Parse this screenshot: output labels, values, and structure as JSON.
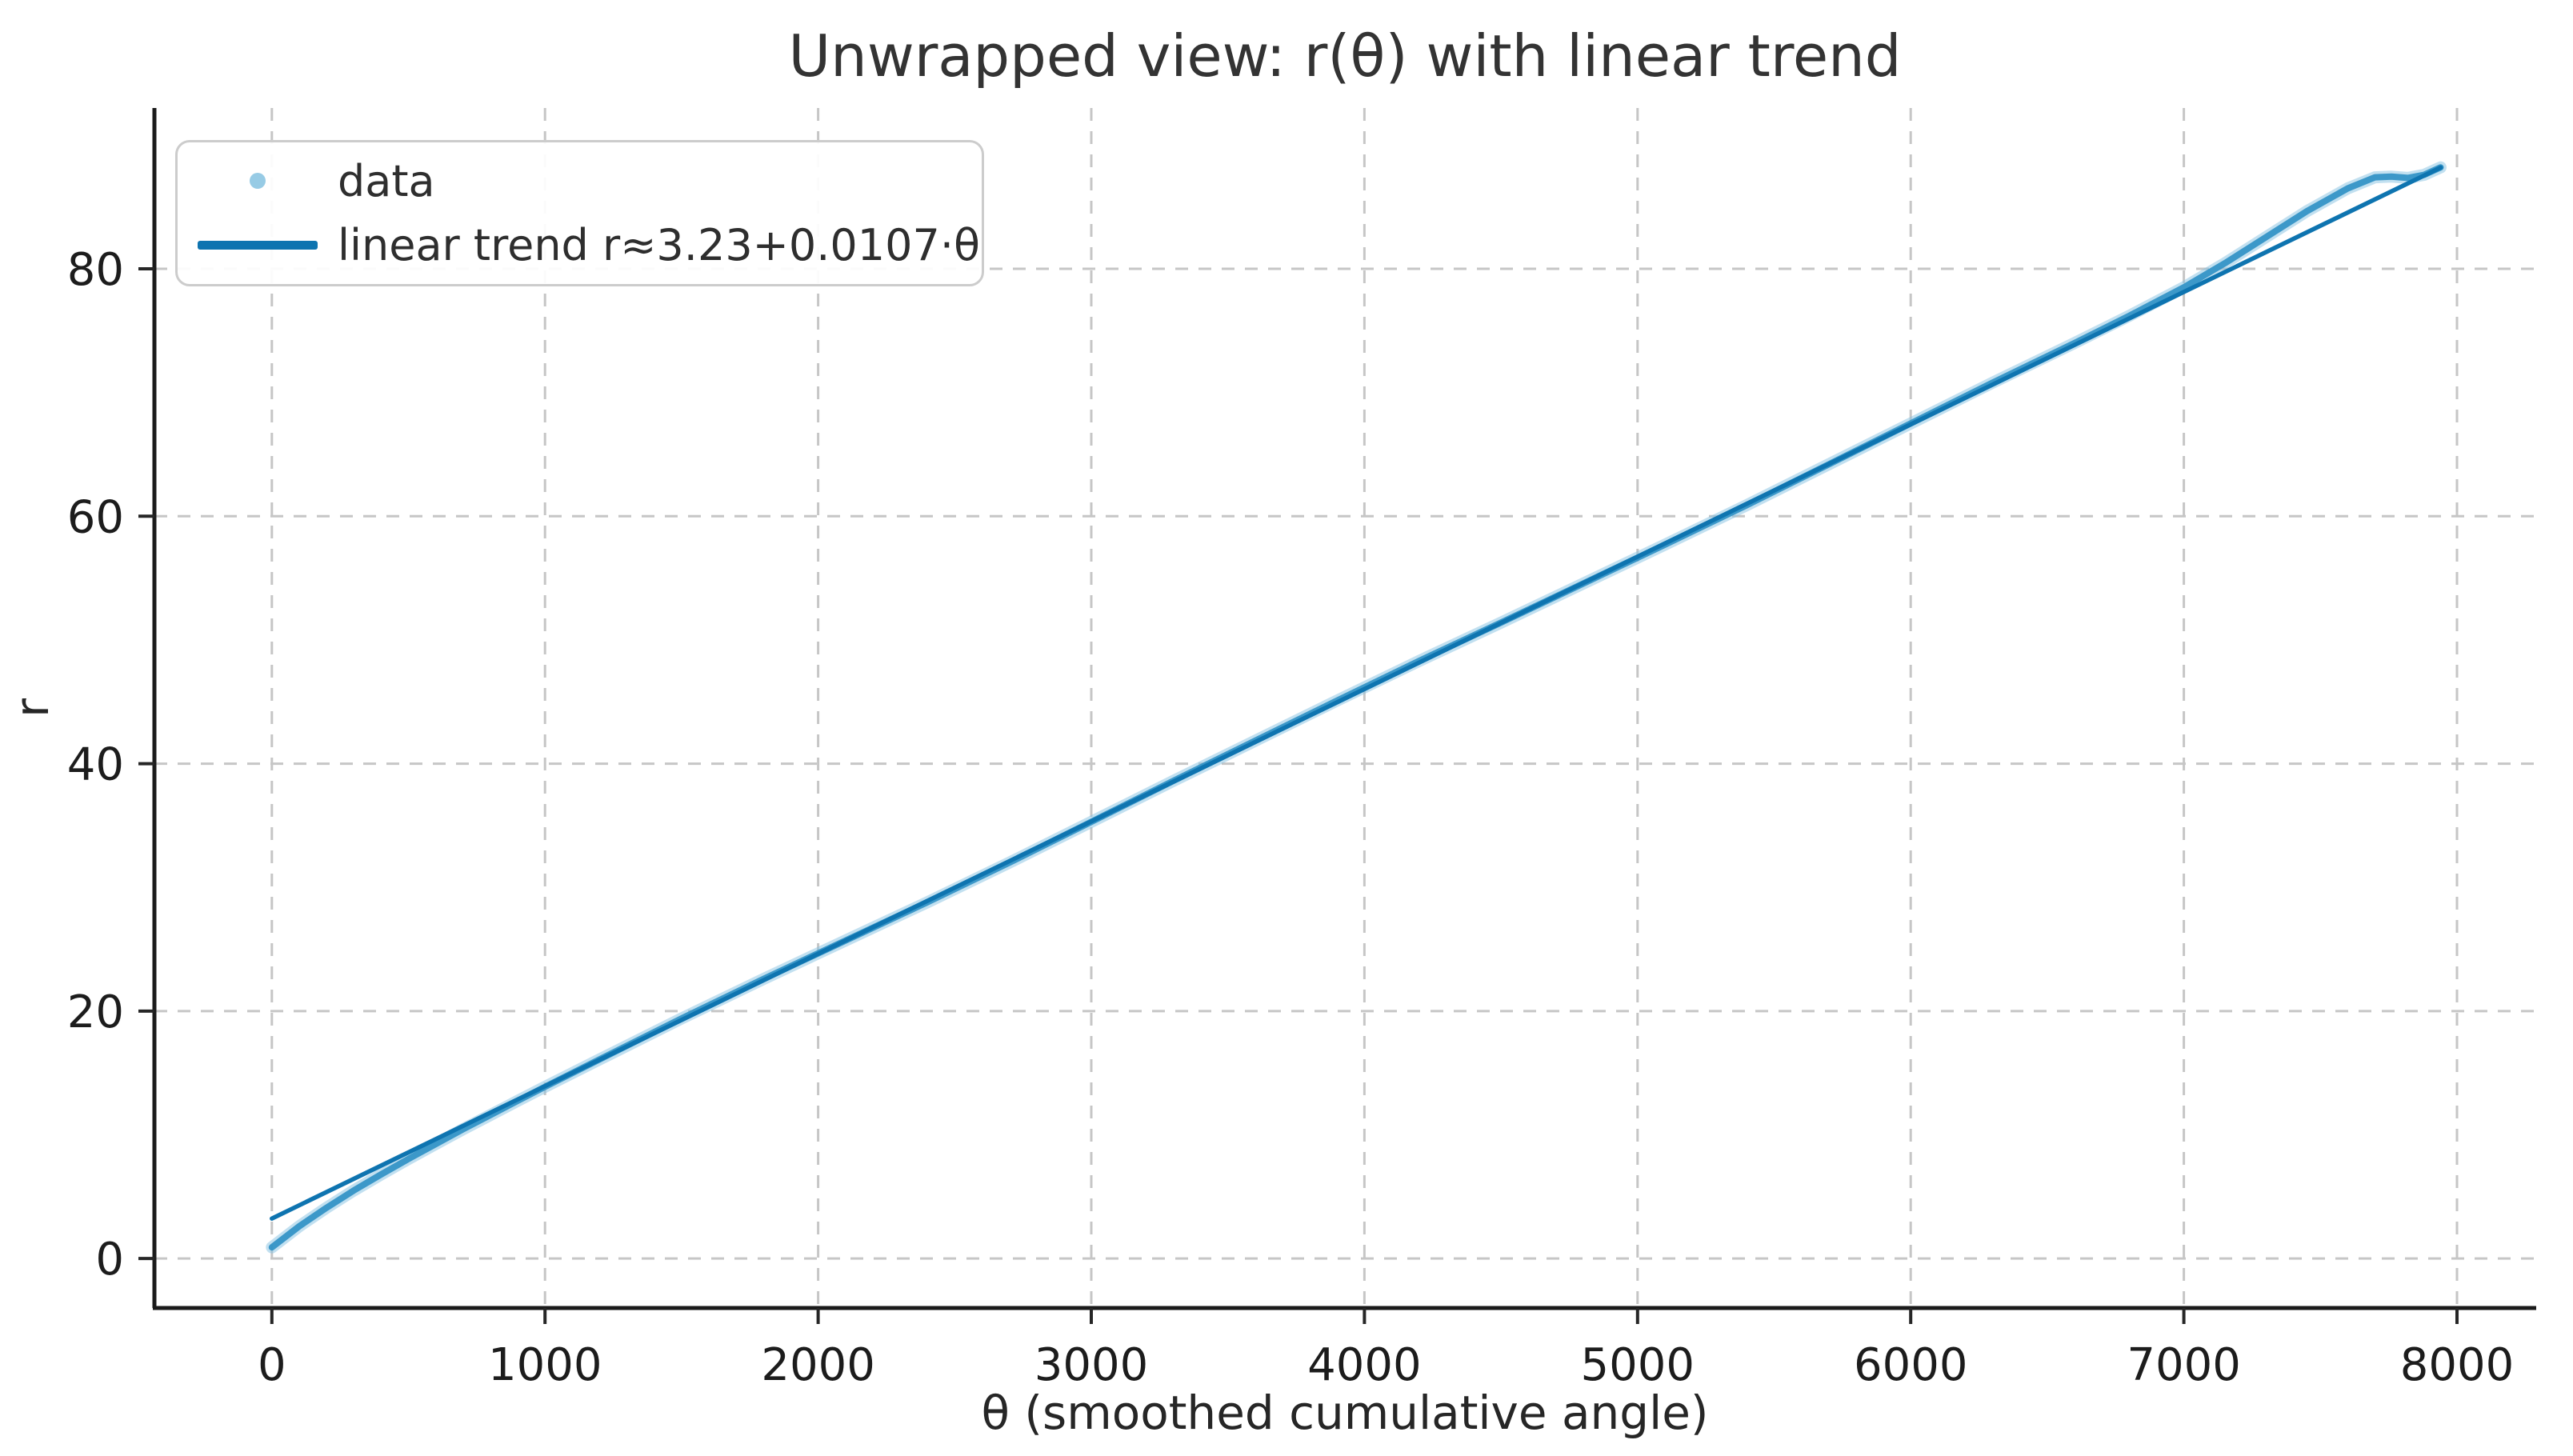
{
  "chart_data": {
    "type": "scatter",
    "title": "Unwrapped view: r(θ) with linear trend",
    "xlabel": "θ (smoothed cumulative angle)",
    "ylabel": "r",
    "xlim": [
      -430,
      8290
    ],
    "ylim": [
      -4,
      93
    ],
    "xticks": [
      0,
      1000,
      2000,
      3000,
      4000,
      5000,
      6000,
      7000,
      8000
    ],
    "yticks": [
      0,
      20,
      40,
      60,
      80
    ],
    "grid": true,
    "grid_style": "dashed",
    "legend_position": "upper-left",
    "legend": {
      "entries": [
        {
          "label": "data",
          "type": "marker",
          "color": "#85c2e1"
        },
        {
          "label": "linear trend r≈3.23+0.0107·θ",
          "type": "line",
          "color": "#0e74b0"
        }
      ]
    },
    "trend": {
      "intercept": 3.23,
      "slope": 0.0107,
      "x_start": 0,
      "x_end": 7940,
      "color": "#0e74b0"
    },
    "series": [
      {
        "name": "data",
        "color_core": "#2d90c4",
        "color_halo": "#85c2e1",
        "points": [
          [
            0,
            0.9
          ],
          [
            100,
            2.6
          ],
          [
            200,
            4.1
          ],
          [
            300,
            5.5
          ],
          [
            400,
            6.8
          ],
          [
            500,
            8.05
          ],
          [
            600,
            9.25
          ],
          [
            700,
            10.45
          ],
          [
            800,
            11.6
          ],
          [
            900,
            12.75
          ],
          [
            1000,
            13.88
          ],
          [
            1200,
            16.1
          ],
          [
            1500,
            19.4
          ],
          [
            1800,
            22.6
          ],
          [
            2100,
            25.7
          ],
          [
            2400,
            28.8
          ],
          [
            2700,
            32.0
          ],
          [
            3000,
            35.3
          ],
          [
            3300,
            38.6
          ],
          [
            3600,
            41.85
          ],
          [
            3900,
            45.1
          ],
          [
            4200,
            48.3
          ],
          [
            4500,
            51.4
          ],
          [
            4800,
            54.55
          ],
          [
            5100,
            57.7
          ],
          [
            5400,
            60.9
          ],
          [
            5700,
            64.2
          ],
          [
            6000,
            67.5
          ],
          [
            6300,
            70.8
          ],
          [
            6600,
            74.0
          ],
          [
            6800,
            76.2
          ],
          [
            7000,
            78.5
          ],
          [
            7150,
            80.45
          ],
          [
            7300,
            82.55
          ],
          [
            7450,
            84.65
          ],
          [
            7600,
            86.5
          ],
          [
            7700,
            87.4
          ],
          [
            7760,
            87.45
          ],
          [
            7820,
            87.35
          ],
          [
            7880,
            87.6
          ],
          [
            7940,
            88.2
          ]
        ]
      }
    ],
    "colors": {
      "grid": "#c6c6c6",
      "spine": "#1a1a1a",
      "tick": "#262626",
      "tick_label": "#1c1c1c",
      "title": "#333333"
    }
  }
}
